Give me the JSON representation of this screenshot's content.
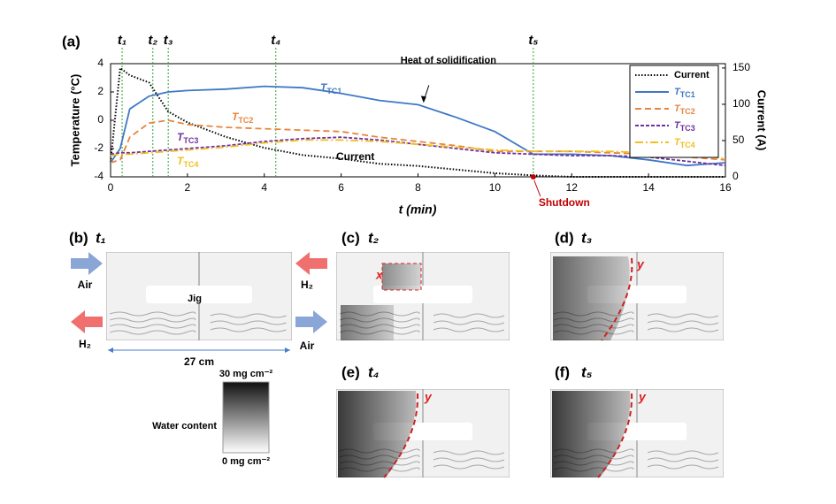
{
  "chart_data": {
    "type": "line",
    "panel_label": "(a)",
    "x_label": "t (min)",
    "y_label": "Temperature (°C)",
    "y2_label": "Current (A)",
    "xlim": [
      0,
      16
    ],
    "xticks": [
      0,
      2,
      4,
      6,
      8,
      10,
      12,
      14,
      16
    ],
    "ylim": [
      -4,
      4
    ],
    "yticks": [
      -4,
      -2,
      0,
      2,
      4
    ],
    "y2lim": [
      0,
      156
    ],
    "y2ticks": [
      0,
      50,
      100,
      150
    ],
    "legend": "upper right",
    "x": [
      0,
      0.25,
      0.5,
      1,
      1.5,
      2,
      3,
      4,
      5,
      6,
      7,
      8,
      9,
      10,
      11,
      12,
      13,
      14,
      15,
      16
    ],
    "series": [
      {
        "name": "Current",
        "color": "#000000",
        "style": "dotted",
        "axis": "y2",
        "values": [
          20,
          150,
          140,
          130,
          90,
          75,
          55,
          40,
          30,
          25,
          18,
          15,
          10,
          5,
          2,
          0,
          0,
          0,
          0,
          0
        ]
      },
      {
        "name": "T",
        "name_sub": "TC1",
        "color": "#3f78c4",
        "style": "solid",
        "values": [
          -3,
          -2,
          0.8,
          1.7,
          2,
          2.1,
          2.2,
          2.4,
          2.3,
          1.9,
          1.4,
          1.1,
          0.2,
          -0.8,
          -2.4,
          -2.4,
          -2.5,
          -2.8,
          -3.2,
          -3
        ]
      },
      {
        "name": "T",
        "name_sub": "TC2",
        "color": "#e8843c",
        "style": "dashed",
        "values": [
          -3,
          -2.8,
          -1.2,
          -0.2,
          0,
          -0.3,
          -0.5,
          -0.6,
          -0.7,
          -0.8,
          -1.2,
          -1.5,
          -1.8,
          -2.2,
          -2.2,
          -2.2,
          -2.3,
          -2.4,
          -2.6,
          -2.8
        ]
      },
      {
        "name": "T",
        "name_sub": "TC3",
        "color": "#7030a0",
        "style": "shortdash",
        "values": [
          -2.4,
          -2.3,
          -2.3,
          -2.2,
          -2.1,
          -2,
          -1.8,
          -1.5,
          -1.3,
          -1.2,
          -1.4,
          -1.7,
          -2,
          -2.3,
          -2.4,
          -2.5,
          -2.5,
          -2.6,
          -2.9,
          -3.2
        ]
      },
      {
        "name": "T",
        "name_sub": "TC4",
        "color": "#f0c020",
        "style": "dashdot",
        "values": [
          -2.5,
          -2.4,
          -2.4,
          -2.3,
          -2.2,
          -2.1,
          -1.9,
          -1.6,
          -1.4,
          -1.4,
          -1.5,
          -1.7,
          -1.9,
          -2.1,
          -2.2,
          -2.2,
          -2.2,
          -2.3,
          -2.4,
          -2.7
        ]
      }
    ],
    "markers": [
      {
        "x": 0.3,
        "label": "t₁"
      },
      {
        "x": 1.1,
        "label": "t₂"
      },
      {
        "x": 1.5,
        "label": "t₃"
      },
      {
        "x": 4.3,
        "label": "t₄"
      },
      {
        "x": 11,
        "label": "t₅"
      }
    ],
    "annotation": {
      "text": "Heat of solidification",
      "x": 8.1,
      "y": 1.1
    },
    "shutdown": {
      "x": 11,
      "label": "Shutdown"
    }
  },
  "panels": [
    {
      "label": "(b)",
      "time": "t₁"
    },
    {
      "label": "(c)",
      "time": "t₂"
    },
    {
      "label": "(d)",
      "time": "t₃"
    },
    {
      "label": "(e)",
      "time": "t₄"
    },
    {
      "label": "(f)",
      "time": "t₅"
    }
  ],
  "panel_b": {
    "air_in": "Air",
    "h2_in": "H₂",
    "h2_out": "H₂",
    "air_out": "Air",
    "jig": "Jig",
    "width": "27 cm"
  },
  "region_labels": {
    "c": "x",
    "d": "y",
    "e": "y",
    "f": "y"
  },
  "colorbar": {
    "title": "Water content",
    "max": "30 mg cm⁻²",
    "min": "0 mg cm⁻²"
  }
}
